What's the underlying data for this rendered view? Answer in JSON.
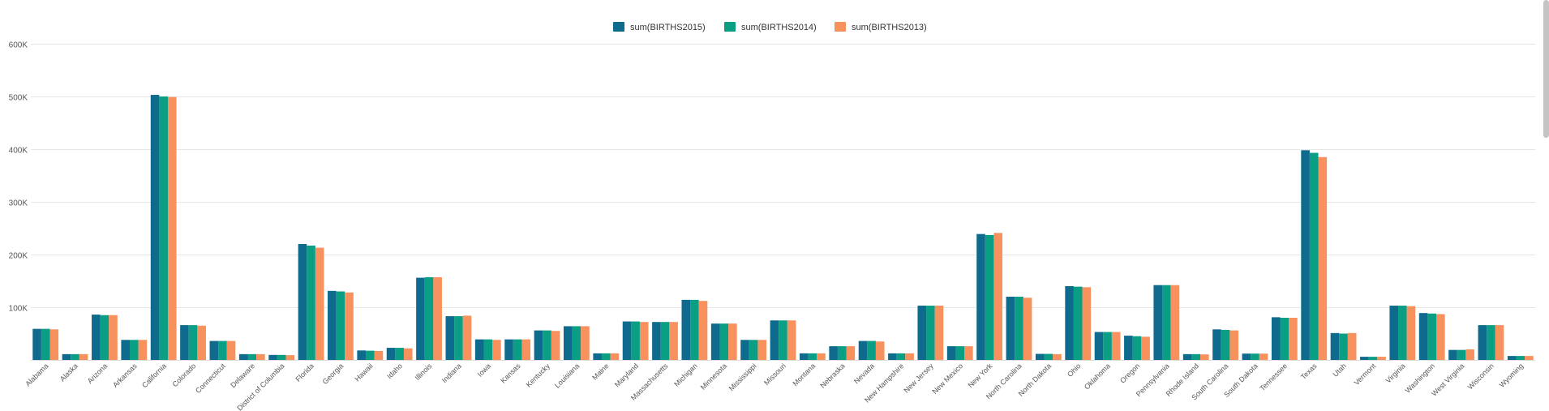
{
  "chart_data": {
    "type": "bar",
    "title": "",
    "xlabel": "",
    "ylabel": "",
    "ylim": [
      0,
      600000
    ],
    "yticks": [
      {
        "value": 100000,
        "label": "100K"
      },
      {
        "value": 200000,
        "label": "200K"
      },
      {
        "value": 300000,
        "label": "300K"
      },
      {
        "value": 400000,
        "label": "400K"
      },
      {
        "value": 500000,
        "label": "500K"
      },
      {
        "value": 600000,
        "label": "600K"
      }
    ],
    "grid": true,
    "legend_position": "top-center",
    "categories": [
      "Alabama",
      "Alaska",
      "Arizona",
      "Arkansas",
      "California",
      "Colorado",
      "Connecticut",
      "Delaware",
      "District of Columbia",
      "Florida",
      "Georgia",
      "Hawaii",
      "Idaho",
      "Illinois",
      "Indiana",
      "Iowa",
      "Kansas",
      "Kentucky",
      "Louisiana",
      "Maine",
      "Maryland",
      "Massachusetts",
      "Michigan",
      "Minnesota",
      "Mississippi",
      "Missouri",
      "Montana",
      "Nebraska",
      "Nevada",
      "New Hampshire",
      "New Jersey",
      "New Mexico",
      "New York",
      "North Carolina",
      "North Dakota",
      "Ohio",
      "Oklahoma",
      "Oregon",
      "Pennsylvania",
      "Rhode Island",
      "South Carolina",
      "South Dakota",
      "Tennessee",
      "Texas",
      "Utah",
      "Vermont",
      "Virginia",
      "Washington",
      "West Virginia",
      "Wisconsin",
      "Wyoming"
    ],
    "series": [
      {
        "name": "sum(BIRTHS2015)",
        "color": "#0f6b8e",
        "values": [
          59000,
          11000,
          86000,
          38000,
          503000,
          66000,
          36000,
          11000,
          9500,
          220000,
          131000,
          18000,
          23000,
          156000,
          83000,
          39000,
          39000,
          56000,
          64000,
          12500,
          73000,
          72000,
          114000,
          69000,
          38000,
          75000,
          12500,
          26000,
          36000,
          12500,
          103000,
          26000,
          239000,
          120000,
          11500,
          140000,
          53000,
          46000,
          142000,
          11000,
          58000,
          12000,
          81000,
          398000,
          51000,
          6000,
          103000,
          89000,
          19000,
          66000,
          7500
        ]
      },
      {
        "name": "sum(BIRTHS2014)",
        "color": "#0a9e85",
        "values": [
          59000,
          11000,
          85000,
          38000,
          500000,
          66000,
          36000,
          11000,
          9500,
          217000,
          130000,
          17500,
          23000,
          157000,
          83000,
          39000,
          39000,
          56000,
          64000,
          12500,
          73000,
          72000,
          114000,
          69000,
          38000,
          75000,
          12500,
          26000,
          36000,
          12500,
          103000,
          26000,
          237000,
          120000,
          11500,
          139000,
          53000,
          45000,
          142000,
          11000,
          57000,
          12000,
          80000,
          393000,
          50000,
          6000,
          103000,
          88000,
          19000,
          66000,
          7500
        ]
      },
      {
        "name": "sum(BIRTHS2013)",
        "color": "#f7915d",
        "values": [
          58000,
          11000,
          85000,
          38000,
          499000,
          65000,
          36000,
          11000,
          9000,
          213000,
          128000,
          17000,
          22000,
          157000,
          84000,
          38000,
          39000,
          55000,
          64000,
          12500,
          72000,
          72000,
          112000,
          69000,
          38000,
          75000,
          12500,
          26000,
          35000,
          12500,
          103000,
          26000,
          241000,
          118000,
          11000,
          138000,
          53000,
          44000,
          142000,
          10500,
          56000,
          12000,
          80000,
          385000,
          51000,
          6000,
          102000,
          87000,
          20000,
          66000,
          7500
        ]
      }
    ]
  }
}
